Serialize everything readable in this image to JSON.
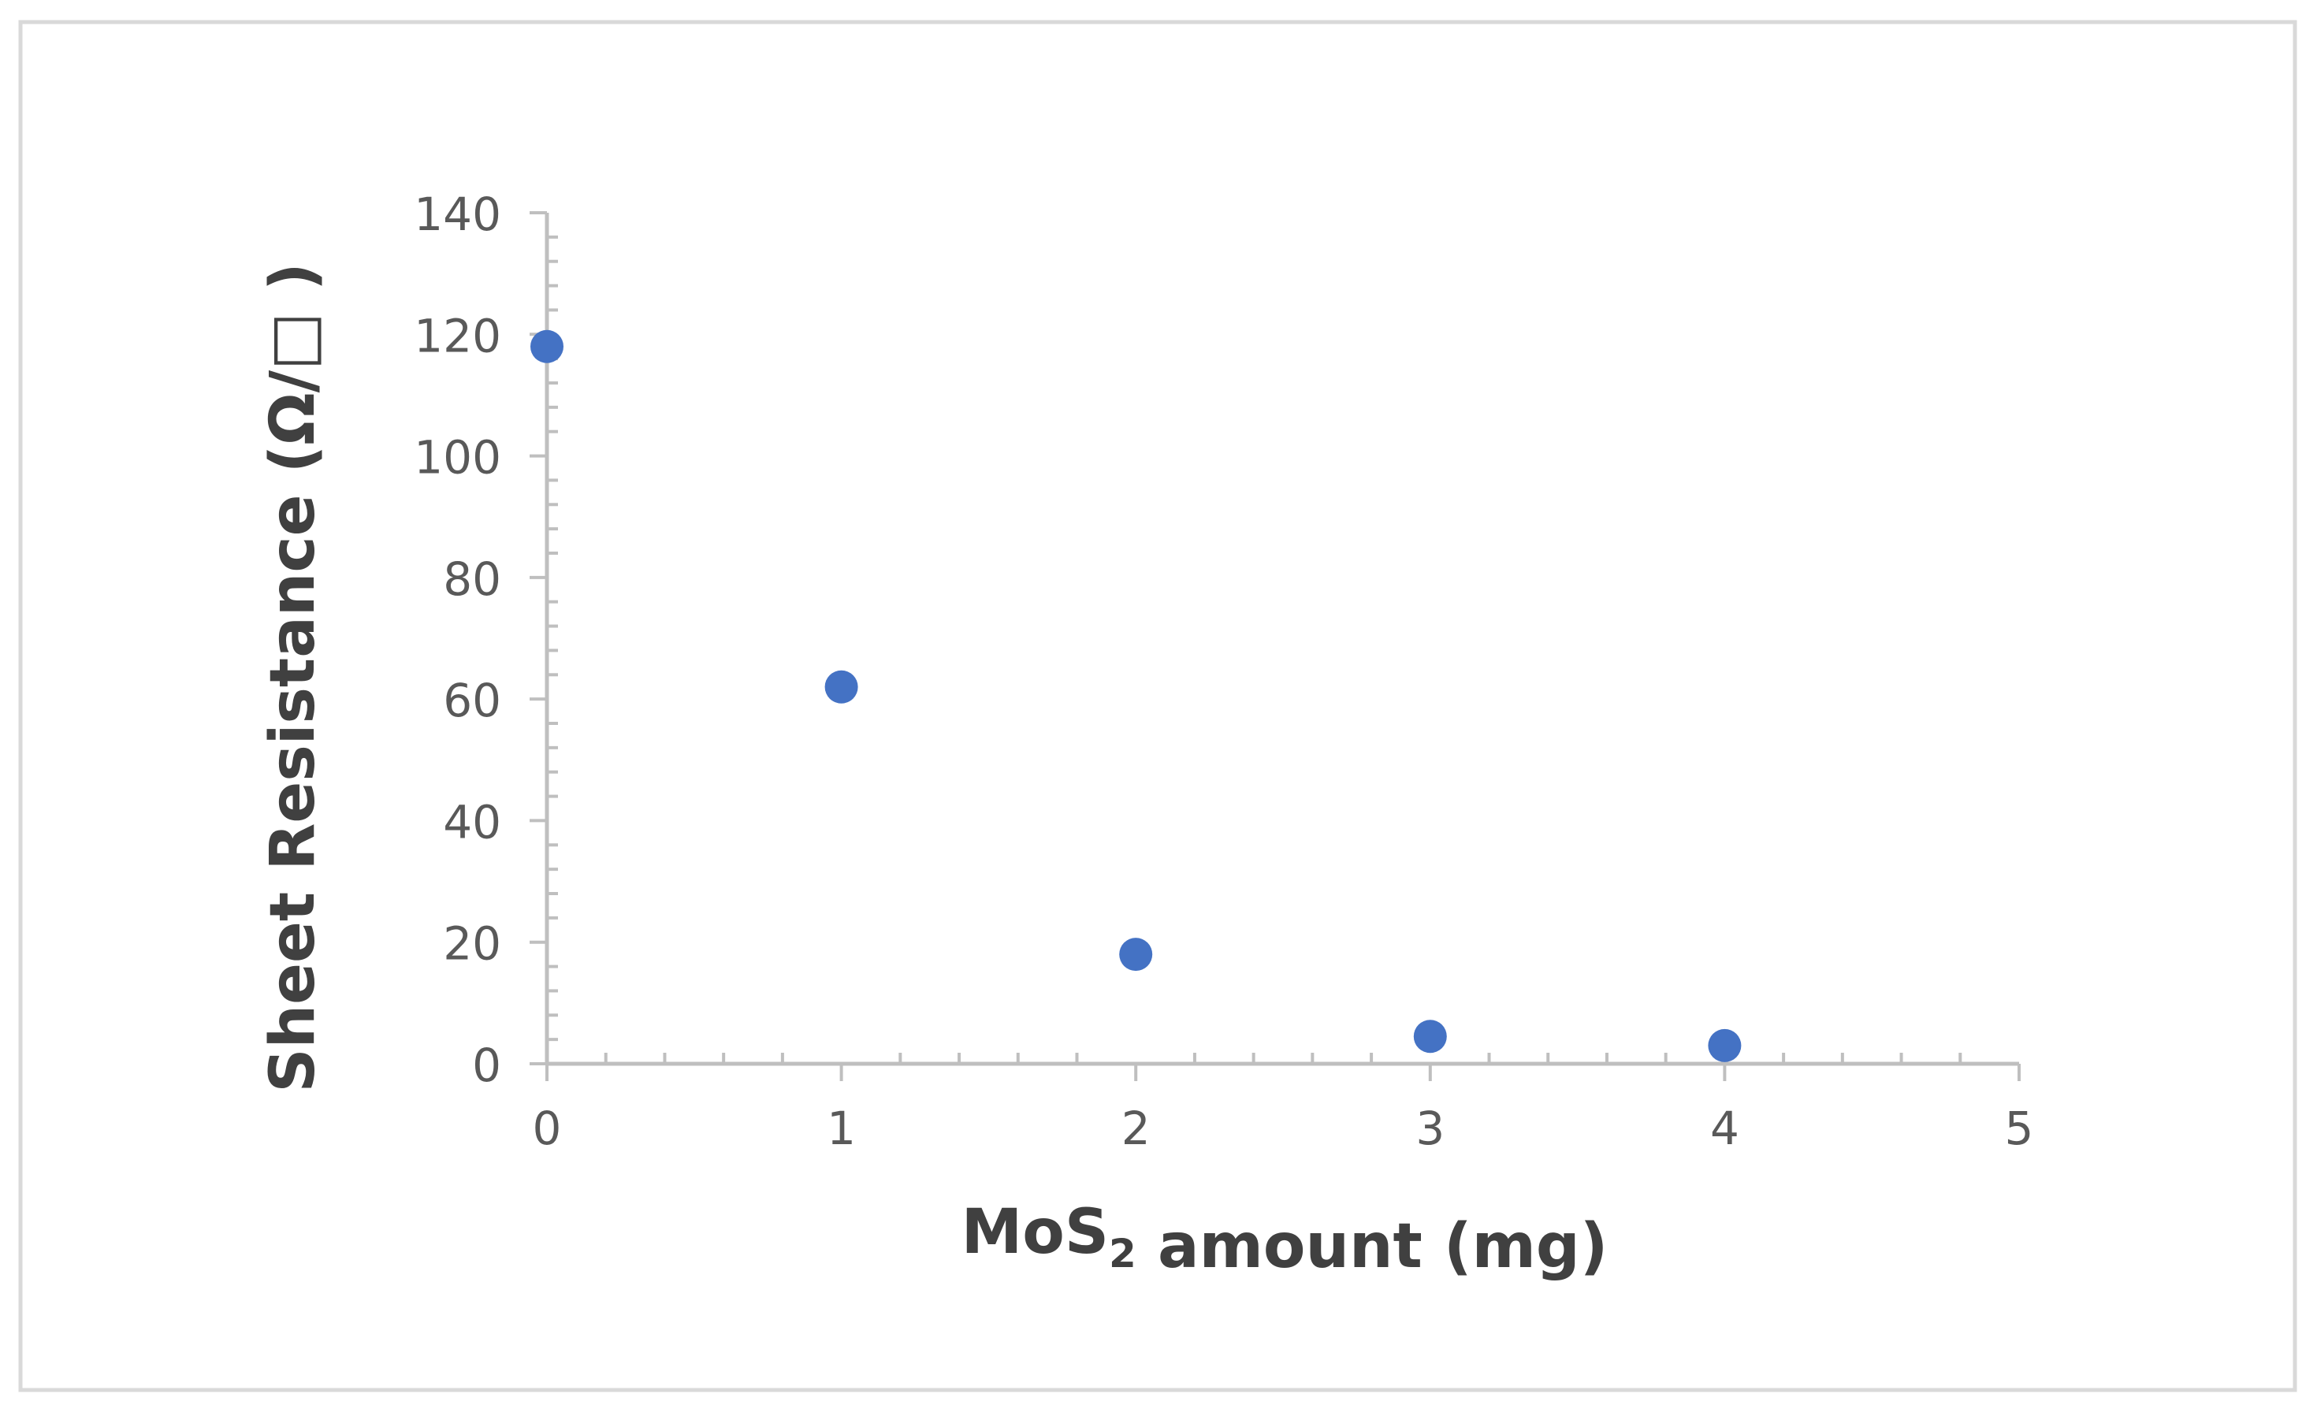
{
  "chart_data": {
    "type": "scatter",
    "title": "",
    "xlabel": "MoS₂ amount (mg)",
    "ylabel": "Sheet Resistance (Ω/□ )",
    "x": [
      0,
      1,
      2,
      3,
      4
    ],
    "y": [
      118,
      62,
      18,
      4.5,
      3
    ],
    "xlim": [
      0,
      5
    ],
    "ylim": [
      0,
      140
    ],
    "xticks": [
      0,
      1,
      2,
      3,
      4,
      5
    ],
    "yticks": [
      0,
      20,
      40,
      60,
      80,
      100,
      120,
      140
    ],
    "x_minor_per_major": 5,
    "y_minor_per_major": 5,
    "grid": false,
    "legend": "none",
    "colors": {
      "marker": "#4472C4",
      "axis": "#BFBFBF",
      "tick_text": "#595959",
      "label_text": "#404040",
      "frame": "#D9D9D9"
    }
  }
}
